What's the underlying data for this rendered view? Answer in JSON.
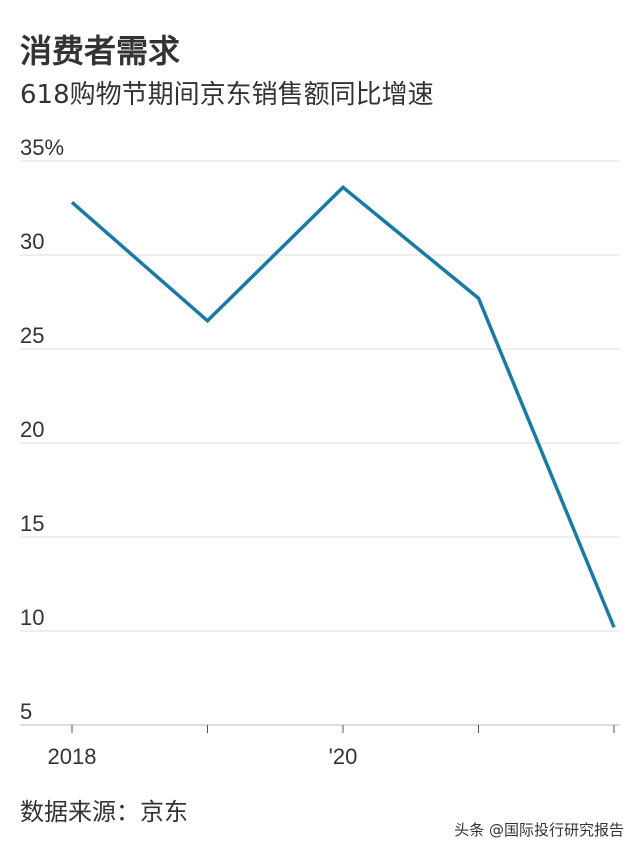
{
  "chart_data": {
    "type": "line",
    "title": "消费者需求",
    "subtitle": "618购物节期间京东销售额同比增速",
    "categories": [
      "2018",
      null,
      "'20",
      null,
      null
    ],
    "series": [
      {
        "name": "京东销售额同比增速",
        "color": "#1a7aa3",
        "values": [
          32.8,
          26.5,
          33.6,
          27.7,
          10.2
        ]
      }
    ],
    "ylim": [
      5,
      35
    ],
    "yticks": [
      5,
      10,
      15,
      20,
      25,
      30,
      {
        "value": 35,
        "label": "35%"
      }
    ],
    "grid": true,
    "source": "数据来源：京东",
    "watermark": "头条 @国际投行研究报告"
  }
}
